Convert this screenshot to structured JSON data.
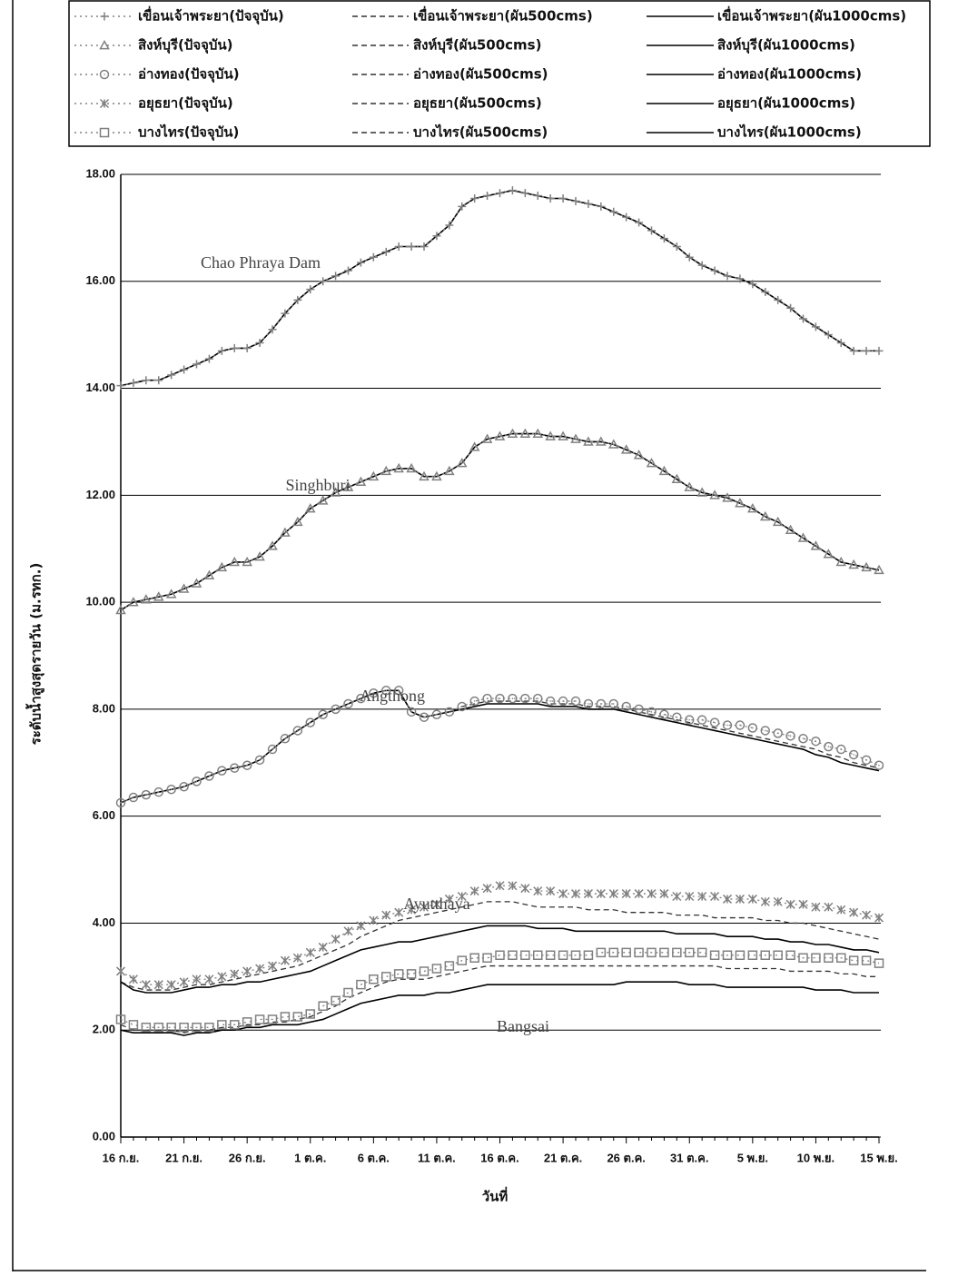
{
  "chart_data": {
    "type": "line",
    "x_label": "วันที่",
    "y_label": "ระดับน้ำสูงสุดรายวัน (ม.รทก.)",
    "categories": [
      "16 ก.ย.",
      null,
      null,
      null,
      null,
      "21 ก.ย.",
      null,
      null,
      null,
      null,
      "26 ก.ย.",
      null,
      null,
      null,
      null,
      "1 ต.ค.",
      null,
      null,
      null,
      null,
      "6 ต.ค.",
      null,
      null,
      null,
      null,
      "11 ต.ค.",
      null,
      null,
      null,
      null,
      "16 ต.ค.",
      null,
      null,
      null,
      null,
      "21 ต.ค.",
      null,
      null,
      null,
      null,
      "26 ต.ค.",
      null,
      null,
      null,
      null,
      "31 ต.ค.",
      null,
      null,
      null,
      null,
      "5 พ.ย.",
      null,
      null,
      null,
      null,
      "10 พ.ย.",
      null,
      null,
      null,
      null,
      "15 พ.ย."
    ],
    "ylim": [
      0,
      18
    ],
    "yticks": [
      {
        "value": 0,
        "label": "0.00"
      },
      {
        "value": 2,
        "label": "2.00"
      },
      {
        "value": 4,
        "label": "4.00"
      },
      {
        "value": 6,
        "label": "6.00"
      },
      {
        "value": 8,
        "label": "8.00"
      },
      {
        "value": 10,
        "label": "10.00"
      },
      {
        "value": 12,
        "label": "12.00"
      },
      {
        "value": 14,
        "label": "14.00"
      },
      {
        "value": 16,
        "label": "16.00"
      },
      {
        "value": 18,
        "label": "18.00"
      }
    ],
    "grid": true,
    "legend_position": "top",
    "annotations": [
      {
        "text": "Chao Phraya Dam"
      },
      {
        "text": "Singhburi"
      },
      {
        "text": "Angthong"
      },
      {
        "text": "Ayutthaya"
      },
      {
        "text": "Bangsai"
      }
    ],
    "series": [
      {
        "name": "เขื่อนเจ้าพระยา(ปัจจุบัน)",
        "color": "#808080",
        "line_style": "dotted",
        "marker": "plus",
        "values": [
          14.05,
          14.1,
          14.15,
          14.15,
          14.25,
          14.35,
          14.45,
          14.55,
          14.7,
          14.75,
          14.75,
          14.85,
          15.1,
          15.4,
          15.65,
          15.85,
          16.0,
          16.1,
          16.2,
          16.35,
          16.45,
          16.55,
          16.65,
          16.65,
          16.65,
          16.85,
          17.05,
          17.4,
          17.55,
          17.6,
          17.65,
          17.7,
          17.65,
          17.6,
          17.55,
          17.55,
          17.5,
          17.45,
          17.4,
          17.3,
          17.2,
          17.1,
          16.95,
          16.8,
          16.65,
          16.45,
          16.3,
          16.2,
          16.1,
          16.05,
          15.95,
          15.8,
          15.65,
          15.5,
          15.3,
          15.15,
          15.0,
          14.85,
          14.7,
          14.7,
          14.7
        ]
      },
      {
        "name": "เขื่อนเจ้าพระยา(ผัน500cms)",
        "color": "#333333",
        "line_style": "dashed",
        "marker": "none",
        "values": [
          14.05,
          14.1,
          14.15,
          14.15,
          14.25,
          14.35,
          14.45,
          14.55,
          14.7,
          14.75,
          14.75,
          14.85,
          15.1,
          15.4,
          15.65,
          15.85,
          16.0,
          16.1,
          16.2,
          16.35,
          16.45,
          16.55,
          16.65,
          16.65,
          16.65,
          16.85,
          17.05,
          17.4,
          17.55,
          17.6,
          17.65,
          17.7,
          17.65,
          17.6,
          17.55,
          17.55,
          17.5,
          17.45,
          17.4,
          17.3,
          17.2,
          17.1,
          16.95,
          16.8,
          16.65,
          16.45,
          16.3,
          16.2,
          16.1,
          16.05,
          15.95,
          15.8,
          15.65,
          15.5,
          15.3,
          15.15,
          15.0,
          14.85,
          14.7,
          14.7,
          14.7
        ]
      },
      {
        "name": "เขื่อนเจ้าพระยา(ผัน1000cms)",
        "color": "#000000",
        "line_style": "solid",
        "marker": "none",
        "values": [
          14.05,
          14.1,
          14.15,
          14.15,
          14.25,
          14.35,
          14.45,
          14.55,
          14.7,
          14.75,
          14.75,
          14.85,
          15.1,
          15.4,
          15.65,
          15.85,
          16.0,
          16.1,
          16.2,
          16.35,
          16.45,
          16.55,
          16.65,
          16.65,
          16.65,
          16.85,
          17.05,
          17.4,
          17.55,
          17.6,
          17.65,
          17.7,
          17.65,
          17.6,
          17.55,
          17.55,
          17.5,
          17.45,
          17.4,
          17.3,
          17.2,
          17.1,
          16.95,
          16.8,
          16.65,
          16.45,
          16.3,
          16.2,
          16.1,
          16.05,
          15.95,
          15.8,
          15.65,
          15.5,
          15.3,
          15.15,
          15.0,
          14.85,
          14.7,
          14.7,
          14.7
        ]
      },
      {
        "name": "สิงห์บุรี(ปัจจุบัน)",
        "color": "#808080",
        "line_style": "dotted",
        "marker": "triangle",
        "values": [
          9.85,
          10.0,
          10.05,
          10.1,
          10.15,
          10.25,
          10.35,
          10.5,
          10.65,
          10.75,
          10.75,
          10.85,
          11.05,
          11.3,
          11.5,
          11.75,
          11.9,
          12.05,
          12.15,
          12.25,
          12.35,
          12.45,
          12.5,
          12.5,
          12.35,
          12.35,
          12.45,
          12.6,
          12.9,
          13.05,
          13.1,
          13.15,
          13.15,
          13.15,
          13.1,
          13.1,
          13.05,
          13.0,
          13.0,
          12.95,
          12.85,
          12.75,
          12.6,
          12.45,
          12.3,
          12.15,
          12.05,
          12.0,
          11.95,
          11.85,
          11.75,
          11.6,
          11.5,
          11.35,
          11.2,
          11.05,
          10.9,
          10.75,
          10.7,
          10.65,
          10.6
        ]
      },
      {
        "name": "สิงห์บุรี(ผัน500cms)",
        "color": "#333333",
        "line_style": "dashed",
        "marker": "none",
        "values": [
          9.85,
          10.0,
          10.05,
          10.1,
          10.15,
          10.25,
          10.35,
          10.5,
          10.65,
          10.75,
          10.75,
          10.85,
          11.05,
          11.3,
          11.5,
          11.75,
          11.9,
          12.05,
          12.15,
          12.25,
          12.35,
          12.45,
          12.5,
          12.5,
          12.35,
          12.35,
          12.45,
          12.6,
          12.9,
          13.05,
          13.1,
          13.15,
          13.15,
          13.15,
          13.1,
          13.1,
          13.05,
          13.0,
          13.0,
          12.95,
          12.85,
          12.75,
          12.6,
          12.45,
          12.3,
          12.15,
          12.05,
          12.0,
          11.95,
          11.85,
          11.75,
          11.6,
          11.5,
          11.35,
          11.2,
          11.05,
          10.9,
          10.75,
          10.7,
          10.65,
          10.6
        ]
      },
      {
        "name": "สิงห์บุรี(ผัน1000cms)",
        "color": "#000000",
        "line_style": "solid",
        "marker": "none",
        "values": [
          9.85,
          10.0,
          10.05,
          10.1,
          10.15,
          10.25,
          10.35,
          10.5,
          10.65,
          10.75,
          10.75,
          10.85,
          11.05,
          11.3,
          11.5,
          11.75,
          11.9,
          12.05,
          12.15,
          12.25,
          12.35,
          12.45,
          12.5,
          12.5,
          12.35,
          12.35,
          12.45,
          12.6,
          12.9,
          13.05,
          13.1,
          13.15,
          13.15,
          13.15,
          13.1,
          13.1,
          13.05,
          13.0,
          13.0,
          12.95,
          12.85,
          12.75,
          12.6,
          12.45,
          12.3,
          12.15,
          12.05,
          12.0,
          11.95,
          11.85,
          11.75,
          11.6,
          11.5,
          11.35,
          11.2,
          11.05,
          10.9,
          10.75,
          10.7,
          10.65,
          10.6
        ]
      },
      {
        "name": "อ่างทอง(ปัจจุบัน)",
        "color": "#808080",
        "line_style": "dotted",
        "marker": "circle",
        "values": [
          6.25,
          6.35,
          6.4,
          6.45,
          6.5,
          6.55,
          6.65,
          6.75,
          6.85,
          6.9,
          6.95,
          7.05,
          7.25,
          7.45,
          7.6,
          7.75,
          7.9,
          8.0,
          8.1,
          8.2,
          8.3,
          8.35,
          8.35,
          7.95,
          7.85,
          7.9,
          7.95,
          8.05,
          8.15,
          8.2,
          8.2,
          8.2,
          8.2,
          8.2,
          8.15,
          8.15,
          8.15,
          8.1,
          8.1,
          8.1,
          8.05,
          8.0,
          7.95,
          7.9,
          7.85,
          7.8,
          7.8,
          7.75,
          7.7,
          7.7,
          7.65,
          7.6,
          7.55,
          7.5,
          7.45,
          7.4,
          7.3,
          7.25,
          7.15,
          7.05,
          6.95
        ]
      },
      {
        "name": "อ่างทอง(ผัน500cms)",
        "color": "#333333",
        "line_style": "dashed",
        "marker": "none",
        "values": [
          6.25,
          6.35,
          6.4,
          6.45,
          6.5,
          6.55,
          6.65,
          6.75,
          6.85,
          6.9,
          6.95,
          7.05,
          7.25,
          7.45,
          7.6,
          7.75,
          7.9,
          8.0,
          8.1,
          8.2,
          8.3,
          8.35,
          8.35,
          7.95,
          7.85,
          7.9,
          7.95,
          8.05,
          8.1,
          8.15,
          8.15,
          8.15,
          8.15,
          8.15,
          8.1,
          8.1,
          8.1,
          8.05,
          8.05,
          8.05,
          8.0,
          7.95,
          7.9,
          7.85,
          7.8,
          7.75,
          7.7,
          7.65,
          7.6,
          7.55,
          7.5,
          7.45,
          7.4,
          7.35,
          7.3,
          7.25,
          7.15,
          7.1,
          7.0,
          6.95,
          6.9
        ]
      },
      {
        "name": "อ่างทอง(ผัน1000cms)",
        "color": "#000000",
        "line_style": "solid",
        "marker": "none",
        "values": [
          6.25,
          6.35,
          6.4,
          6.45,
          6.5,
          6.55,
          6.65,
          6.75,
          6.85,
          6.9,
          6.95,
          7.05,
          7.25,
          7.45,
          7.6,
          7.75,
          7.9,
          8.0,
          8.1,
          8.2,
          8.3,
          8.35,
          8.35,
          7.95,
          7.85,
          7.9,
          7.95,
          8.0,
          8.05,
          8.1,
          8.1,
          8.1,
          8.1,
          8.1,
          8.05,
          8.05,
          8.05,
          8.0,
          8.0,
          8.0,
          7.95,
          7.9,
          7.85,
          7.8,
          7.75,
          7.7,
          7.65,
          7.6,
          7.55,
          7.5,
          7.45,
          7.4,
          7.35,
          7.3,
          7.25,
          7.15,
          7.1,
          7.0,
          6.95,
          6.9,
          6.85
        ]
      },
      {
        "name": "อยุธยา(ปัจจุบัน)",
        "color": "#808080",
        "line_style": "dotted",
        "marker": "asterisk",
        "values": [
          3.1,
          2.95,
          2.85,
          2.85,
          2.85,
          2.9,
          2.95,
          2.95,
          3.0,
          3.05,
          3.1,
          3.15,
          3.2,
          3.3,
          3.35,
          3.45,
          3.55,
          3.7,
          3.85,
          3.95,
          4.05,
          4.15,
          4.2,
          4.25,
          4.3,
          4.35,
          4.45,
          4.5,
          4.6,
          4.65,
          4.7,
          4.7,
          4.65,
          4.6,
          4.6,
          4.55,
          4.55,
          4.55,
          4.55,
          4.55,
          4.55,
          4.55,
          4.55,
          4.55,
          4.5,
          4.5,
          4.5,
          4.5,
          4.45,
          4.45,
          4.45,
          4.4,
          4.4,
          4.35,
          4.35,
          4.3,
          4.3,
          4.25,
          4.2,
          4.15,
          4.1
        ]
      },
      {
        "name": "อยุธยา(ผัน500cms)",
        "color": "#333333",
        "line_style": "dashed",
        "marker": "none",
        "values": [
          2.9,
          2.8,
          2.75,
          2.75,
          2.75,
          2.8,
          2.85,
          2.85,
          2.9,
          2.95,
          3.0,
          3.05,
          3.1,
          3.15,
          3.2,
          3.3,
          3.4,
          3.5,
          3.6,
          3.75,
          3.85,
          3.95,
          4.05,
          4.1,
          4.15,
          4.2,
          4.25,
          4.3,
          4.35,
          4.4,
          4.4,
          4.4,
          4.35,
          4.3,
          4.3,
          4.3,
          4.3,
          4.25,
          4.25,
          4.25,
          4.2,
          4.2,
          4.2,
          4.2,
          4.15,
          4.15,
          4.15,
          4.1,
          4.1,
          4.1,
          4.1,
          4.05,
          4.05,
          4.0,
          4.0,
          3.95,
          3.9,
          3.85,
          3.8,
          3.75,
          3.7
        ]
      },
      {
        "name": "อยุธยา(ผัน1000cms)",
        "color": "#000000",
        "line_style": "solid",
        "marker": "none",
        "values": [
          2.9,
          2.75,
          2.7,
          2.7,
          2.7,
          2.75,
          2.8,
          2.8,
          2.85,
          2.85,
          2.9,
          2.9,
          2.95,
          3.0,
          3.05,
          3.1,
          3.2,
          3.3,
          3.4,
          3.5,
          3.55,
          3.6,
          3.65,
          3.65,
          3.7,
          3.75,
          3.8,
          3.85,
          3.9,
          3.95,
          3.95,
          3.95,
          3.95,
          3.9,
          3.9,
          3.9,
          3.85,
          3.85,
          3.85,
          3.85,
          3.85,
          3.85,
          3.85,
          3.85,
          3.8,
          3.8,
          3.8,
          3.8,
          3.75,
          3.75,
          3.75,
          3.7,
          3.7,
          3.65,
          3.65,
          3.6,
          3.6,
          3.55,
          3.5,
          3.5,
          3.45
        ]
      },
      {
        "name": "บางไทร(ปัจจุบัน)",
        "color": "#808080",
        "line_style": "dotted",
        "marker": "square",
        "values": [
          2.2,
          2.1,
          2.05,
          2.05,
          2.05,
          2.05,
          2.05,
          2.05,
          2.1,
          2.1,
          2.15,
          2.2,
          2.2,
          2.25,
          2.25,
          2.3,
          2.45,
          2.55,
          2.7,
          2.85,
          2.95,
          3.0,
          3.05,
          3.05,
          3.1,
          3.15,
          3.2,
          3.3,
          3.35,
          3.35,
          3.4,
          3.4,
          3.4,
          3.4,
          3.4,
          3.4,
          3.4,
          3.4,
          3.45,
          3.45,
          3.45,
          3.45,
          3.45,
          3.45,
          3.45,
          3.45,
          3.45,
          3.4,
          3.4,
          3.4,
          3.4,
          3.4,
          3.4,
          3.4,
          3.35,
          3.35,
          3.35,
          3.35,
          3.3,
          3.3,
          3.25
        ]
      },
      {
        "name": "บางไทร(ผัน500cms)",
        "color": "#333333",
        "line_style": "dashed",
        "marker": "none",
        "values": [
          2.1,
          2.0,
          2.0,
          2.0,
          2.0,
          1.95,
          2.0,
          2.0,
          2.05,
          2.05,
          2.1,
          2.1,
          2.15,
          2.15,
          2.2,
          2.25,
          2.35,
          2.45,
          2.6,
          2.7,
          2.8,
          2.9,
          2.95,
          2.95,
          2.95,
          3.0,
          3.05,
          3.1,
          3.15,
          3.2,
          3.2,
          3.2,
          3.2,
          3.2,
          3.2,
          3.2,
          3.2,
          3.2,
          3.2,
          3.2,
          3.2,
          3.2,
          3.2,
          3.2,
          3.2,
          3.2,
          3.2,
          3.2,
          3.15,
          3.15,
          3.15,
          3.15,
          3.15,
          3.1,
          3.1,
          3.1,
          3.1,
          3.05,
          3.05,
          3.0,
          3.0
        ]
      },
      {
        "name": "บางไทร(ผัน1000cms)",
        "color": "#000000",
        "line_style": "solid",
        "marker": "none",
        "values": [
          2.0,
          1.95,
          1.95,
          1.95,
          1.95,
          1.9,
          1.95,
          1.95,
          2.0,
          2.0,
          2.05,
          2.05,
          2.1,
          2.1,
          2.1,
          2.15,
          2.2,
          2.3,
          2.4,
          2.5,
          2.55,
          2.6,
          2.65,
          2.65,
          2.65,
          2.7,
          2.7,
          2.75,
          2.8,
          2.85,
          2.85,
          2.85,
          2.85,
          2.85,
          2.85,
          2.85,
          2.85,
          2.85,
          2.85,
          2.85,
          2.9,
          2.9,
          2.9,
          2.9,
          2.9,
          2.85,
          2.85,
          2.85,
          2.8,
          2.8,
          2.8,
          2.8,
          2.8,
          2.8,
          2.8,
          2.75,
          2.75,
          2.75,
          2.7,
          2.7,
          2.7
        ]
      }
    ]
  }
}
